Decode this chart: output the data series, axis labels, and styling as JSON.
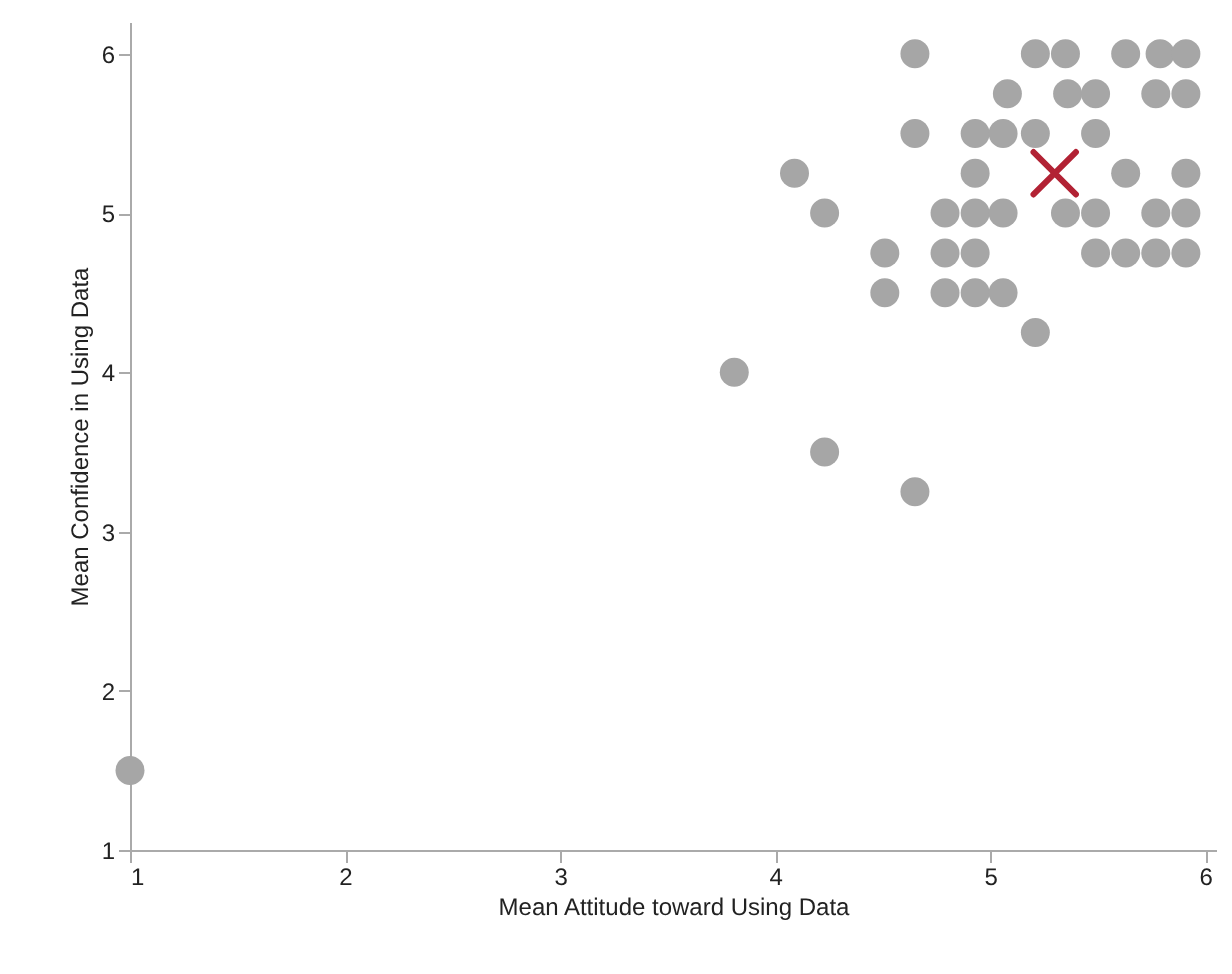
{
  "chart_data": {
    "type": "scatter",
    "xlabel": "Mean Attitude toward Using Data",
    "ylabel": "Mean Confidence in Using Data",
    "xlim": [
      1,
      6.05
    ],
    "ylim": [
      1,
      6.2
    ],
    "xticks": [
      1,
      2,
      3,
      4,
      5,
      6
    ],
    "yticks": [
      1,
      2,
      3,
      4,
      5,
      6
    ],
    "grid": false,
    "series": [
      {
        "color": "#a6a6a6",
        "marker": "circle",
        "x": [
          1,
          3.81,
          4.23,
          4.65,
          4.65,
          5.21,
          5.35,
          5.63,
          5.79,
          5.91,
          5.08,
          5.36,
          5.49,
          5.77,
          5.91,
          4.65,
          4.93,
          5.06,
          5.21,
          5.49,
          4.09,
          4.93,
          5.63,
          5.91,
          4.23,
          4.79,
          4.93,
          5.06,
          5.35,
          5.49,
          5.77,
          5.91,
          4.51,
          4.79,
          4.93,
          5.49,
          5.63,
          5.77,
          5.91,
          4.51,
          4.79,
          4.93,
          5.06,
          5.21
        ],
        "values": [
          1.5,
          4,
          3.5,
          3.25,
          6,
          6,
          6,
          6,
          6,
          6,
          5.75,
          5.75,
          5.75,
          5.75,
          5.75,
          5.5,
          5.5,
          5.5,
          5.5,
          5.5,
          5.25,
          5.25,
          5.25,
          5.25,
          5,
          5,
          5,
          5,
          5,
          5,
          5,
          5,
          4.75,
          4.75,
          4.75,
          4.75,
          4.75,
          4.75,
          4.75,
          4.5,
          4.5,
          4.5,
          4.5,
          4.25
        ]
      },
      {
        "color": "#b22234",
        "marker": "cross",
        "x": [
          5.3
        ],
        "values": [
          5.25
        ]
      }
    ]
  }
}
